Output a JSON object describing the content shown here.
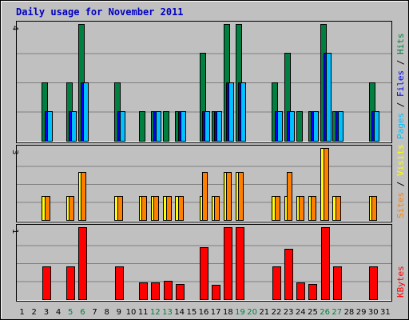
{
  "title": "Daily usage for November 2011",
  "chart_data": {
    "type": "bar",
    "title": "Daily usage for November 2011",
    "categories": [
      "1",
      "2",
      "3",
      "4",
      "5",
      "6",
      "7",
      "8",
      "9",
      "10",
      "11",
      "12",
      "13",
      "14",
      "15",
      "16",
      "17",
      "18",
      "19",
      "20",
      "21",
      "22",
      "23",
      "24",
      "25",
      "26",
      "27",
      "28",
      "29",
      "30",
      "31"
    ],
    "weekend_days": [
      "5",
      "6",
      "12",
      "13",
      "19",
      "20",
      "26",
      "27"
    ],
    "panels": [
      {
        "id": "hits",
        "ymax_label": "4",
        "ylim": [
          0,
          4
        ],
        "ylabel_parts": [
          {
            "text": "Pages",
            "color": "#00C0FF"
          },
          {
            "text": " / ",
            "color": "#000000"
          },
          {
            "text": "Files",
            "color": "#0000FF"
          },
          {
            "text": " / ",
            "color": "#000000"
          },
          {
            "text": "Hits",
            "color": "#008040"
          }
        ],
        "series": [
          {
            "name": "Hits",
            "color": "#008040",
            "values": [
              0,
              0,
              2,
              0,
              2,
              4,
              0,
              0,
              2,
              0,
              1,
              1,
              1,
              1,
              0,
              3,
              1,
              4,
              4,
              0,
              0,
              2,
              3,
              1,
              1,
              4,
              1,
              0,
              0,
              2,
              0
            ]
          },
          {
            "name": "Files",
            "color": "#0000FF",
            "values": [
              0,
              0,
              1,
              0,
              1,
              2,
              0,
              0,
              1,
              0,
              0,
              1,
              0,
              1,
              0,
              1,
              1,
              2,
              2,
              0,
              0,
              1,
              1,
              0,
              1,
              3,
              1,
              0,
              0,
              1,
              0
            ]
          },
          {
            "name": "Pages",
            "color": "#00C0FF",
            "values": [
              0,
              0,
              1,
              0,
              1,
              2,
              0,
              0,
              1,
              0,
              0,
              1,
              0,
              1,
              0,
              1,
              1,
              2,
              2,
              0,
              0,
              1,
              1,
              0,
              1,
              3,
              1,
              0,
              0,
              1,
              0
            ]
          }
        ]
      },
      {
        "id": "visits",
        "ymax_label": "3",
        "ylim": [
          0,
          3
        ],
        "ylabel_parts": [
          {
            "text": "Sites",
            "color": "#FF8000"
          },
          {
            "text": " / ",
            "color": "#000000"
          },
          {
            "text": "Visits",
            "color": "#FFFF00"
          }
        ],
        "series": [
          {
            "name": "Visits",
            "color": "#FFFF00",
            "values": [
              0,
              0,
              1,
              0,
              1,
              2,
              0,
              0,
              1,
              0,
              1,
              1,
              1,
              1,
              0,
              1,
              1,
              2,
              2,
              0,
              0,
              1,
              1,
              1,
              1,
              3,
              1,
              0,
              0,
              1,
              0
            ]
          },
          {
            "name": "Sites",
            "color": "#FF8000",
            "values": [
              0,
              0,
              1,
              0,
              1,
              2,
              0,
              0,
              1,
              0,
              1,
              1,
              1,
              1,
              0,
              2,
              1,
              2,
              2,
              0,
              0,
              1,
              2,
              1,
              1,
              3,
              1,
              0,
              0,
              1,
              0
            ]
          }
        ]
      },
      {
        "id": "kbytes",
        "ymax_label": "1",
        "ylim": [
          0,
          1
        ],
        "ylabel_parts": [
          {
            "text": "KBytes",
            "color": "#FF0000"
          }
        ],
        "series": [
          {
            "name": "KBytes",
            "color": "#FF0000",
            "values": [
              0,
              0,
              0.46,
              0,
              0.46,
              1,
              0,
              0,
              0.46,
              0,
              0.23,
              0.23,
              0.25,
              0.21,
              0,
              0.72,
              0.2,
              1,
              1,
              0,
              0,
              0.46,
              0.7,
              0.23,
              0.21,
              1,
              0.46,
              0,
              0,
              0.46,
              0
            ]
          }
        ]
      }
    ],
    "colors": {
      "background": "#C0C0C0",
      "axis_tick": "#000000",
      "weekend_tick": "#008040",
      "gridline": "#808080"
    }
  }
}
